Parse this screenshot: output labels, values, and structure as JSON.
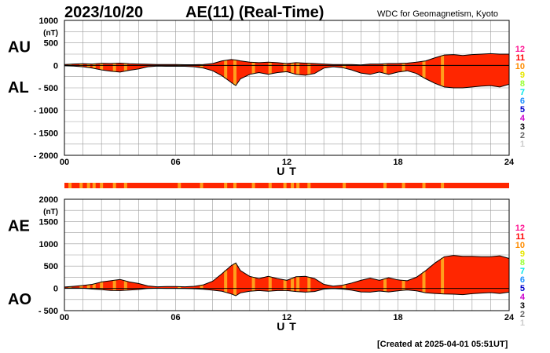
{
  "header": {
    "date": "2023/10/20",
    "title": "AE(11) (Real-Time)",
    "source": "WDC for Geomagnetism, Kyoto"
  },
  "footer": {
    "created": "[Created at 2025-04-01 05:51UT]"
  },
  "colors": {
    "fill": "#ff2600",
    "orange": "#ff9f1c",
    "line": "#000000",
    "grid": "#9a9a9a",
    "station_count_colors": {
      "12": "#ff1493",
      "11": "#ff0000",
      "10": "#ff8c00",
      "9": "#e6e600",
      "8": "#99ff33",
      "7": "#00e6e6",
      "6": "#1e90ff",
      "5": "#0000cc",
      "4": "#cc00cc",
      "3": "#000000",
      "2": "#666666",
      "1": "#cccccc"
    }
  },
  "station_count_labels": [
    "12",
    "11",
    "10",
    "9",
    "8",
    "7",
    "6",
    "5",
    "4",
    "3",
    "2",
    "1"
  ],
  "chart_data": [
    {
      "type": "area",
      "name": "AU-AL",
      "series": [
        {
          "name": "AU",
          "x": [
            0,
            0.5,
            1,
            1.5,
            2,
            2.5,
            3,
            3.5,
            4,
            4.5,
            5,
            5.5,
            6,
            6.5,
            7,
            7.5,
            8,
            8.5,
            9,
            9.25,
            9.5,
            10,
            10.5,
            11,
            11.5,
            12,
            12.5,
            13,
            13.5,
            14,
            14.5,
            15,
            15.5,
            16,
            16.5,
            17,
            17.5,
            18,
            18.5,
            19,
            19.5,
            20,
            20.5,
            21,
            21.5,
            22,
            22.5,
            23,
            23.5,
            24
          ],
          "values": [
            20,
            30,
            35,
            30,
            45,
            40,
            50,
            35,
            30,
            25,
            20,
            20,
            20,
            15,
            15,
            20,
            40,
            100,
            130,
            120,
            100,
            70,
            60,
            70,
            60,
            40,
            60,
            50,
            40,
            30,
            20,
            20,
            20,
            10,
            30,
            30,
            40,
            40,
            50,
            70,
            100,
            170,
            230,
            240,
            220,
            240,
            250,
            260,
            250,
            250
          ]
        },
        {
          "name": "AL",
          "x": [
            0,
            0.5,
            1,
            1.5,
            2,
            2.5,
            3,
            3.5,
            4,
            4.5,
            5,
            5.5,
            6,
            6.5,
            7,
            7.5,
            8,
            8.5,
            9,
            9.25,
            9.5,
            10,
            10.5,
            11,
            11.5,
            12,
            12.5,
            13,
            13.5,
            14,
            14.5,
            15,
            15.5,
            16,
            16.5,
            17,
            17.5,
            18,
            18.5,
            19,
            19.5,
            20,
            20.5,
            21,
            21.5,
            22,
            22.5,
            23,
            23.5,
            24
          ],
          "values": [
            -10,
            -15,
            -30,
            -60,
            -100,
            -130,
            -150,
            -110,
            -80,
            -30,
            -15,
            -20,
            -20,
            -20,
            -30,
            -60,
            -120,
            -230,
            -380,
            -450,
            -300,
            -200,
            -160,
            -200,
            -160,
            -140,
            -200,
            -220,
            -180,
            -60,
            -30,
            -50,
            -100,
            -170,
            -200,
            -150,
            -200,
            -150,
            -120,
            -180,
            -300,
            -400,
            -480,
            -500,
            -500,
            -480,
            -460,
            -450,
            -480,
            -420
          ]
        }
      ],
      "ylim": [
        -2000,
        1000
      ],
      "yticks": [
        1000,
        500,
        0,
        -500,
        -1000,
        -1500,
        -2000
      ],
      "ytick_labels": [
        "1000",
        "500",
        "0",
        "- 500",
        "- 1000",
        "- 1500",
        "- 2000"
      ],
      "unit_label": "(nT)",
      "left_labels": [
        "AU",
        "AL"
      ],
      "xlim": [
        0,
        24
      ],
      "xticks": [
        0,
        6,
        12,
        18,
        24
      ],
      "xtick_labels": [
        "00",
        "06",
        "12",
        "18",
        "24"
      ],
      "xlabel": "U T",
      "grid": true
    },
    {
      "type": "area",
      "name": "AE-AO",
      "series": [
        {
          "name": "AE",
          "x": [
            0,
            0.5,
            1,
            1.5,
            2,
            2.5,
            3,
            3.5,
            4,
            4.5,
            5,
            5.5,
            6,
            6.5,
            7,
            7.5,
            8,
            8.5,
            9,
            9.25,
            9.5,
            10,
            10.5,
            11,
            11.5,
            12,
            12.5,
            13,
            13.5,
            14,
            14.5,
            15,
            15.5,
            16,
            16.5,
            17,
            17.5,
            18,
            18.5,
            19,
            19.5,
            20,
            20.5,
            21,
            21.5,
            22,
            22.5,
            23,
            23.5,
            24
          ],
          "values": [
            30,
            45,
            65,
            90,
            145,
            170,
            200,
            145,
            110,
            55,
            35,
            40,
            40,
            35,
            45,
            80,
            160,
            330,
            510,
            570,
            400,
            270,
            220,
            270,
            220,
            180,
            260,
            270,
            220,
            90,
            50,
            70,
            120,
            180,
            230,
            180,
            240,
            190,
            170,
            250,
            400,
            570,
            710,
            740,
            720,
            720,
            710,
            710,
            730,
            670
          ]
        },
        {
          "name": "AO",
          "x": [
            0,
            0.5,
            1,
            1.5,
            2,
            2.5,
            3,
            3.5,
            4,
            4.5,
            5,
            5.5,
            6,
            6.5,
            7,
            7.5,
            8,
            8.5,
            9,
            9.25,
            9.5,
            10,
            10.5,
            11,
            11.5,
            12,
            12.5,
            13,
            13.5,
            14,
            14.5,
            15,
            15.5,
            16,
            16.5,
            17,
            17.5,
            18,
            18.5,
            19,
            19.5,
            20,
            20.5,
            21,
            21.5,
            22,
            22.5,
            23,
            23.5,
            24
          ],
          "values": [
            5,
            8,
            3,
            -15,
            -28,
            -45,
            -50,
            -38,
            -25,
            -3,
            3,
            0,
            0,
            -3,
            -8,
            -20,
            -40,
            -65,
            -125,
            -165,
            -100,
            -65,
            -50,
            -65,
            -50,
            -50,
            -70,
            -85,
            -70,
            -15,
            -5,
            -15,
            -40,
            -80,
            -85,
            -60,
            -80,
            -55,
            -35,
            -55,
            -100,
            -115,
            -125,
            -130,
            -140,
            -120,
            -105,
            -95,
            -115,
            -85
          ]
        }
      ],
      "ylim": [
        -500,
        2000
      ],
      "yticks": [
        2000,
        1500,
        1000,
        500,
        0,
        -500
      ],
      "ytick_labels": [
        "2000",
        "1500",
        "1000",
        "500",
        "0",
        "- 500"
      ],
      "unit_label": "(nT)",
      "left_labels": [
        "AE",
        "AO"
      ],
      "xlim": [
        0,
        24
      ],
      "xticks": [
        0,
        6,
        12,
        18,
        24
      ],
      "xtick_labels": [
        "00",
        "06",
        "12",
        "18",
        "24"
      ],
      "xlabel": "U T",
      "grid": true
    }
  ],
  "station_bar": {
    "xlim": [
      0,
      24
    ],
    "orange_hours": [
      0.3,
      0.9,
      1.3,
      1.6,
      2.0,
      2.7,
      3.3,
      6.2,
      7.4,
      8.7,
      9.2,
      10.2,
      11.1,
      11.9,
      12.3,
      12.6,
      13.2,
      15.1,
      17.3,
      18.3,
      19.4,
      20.4
    ]
  }
}
